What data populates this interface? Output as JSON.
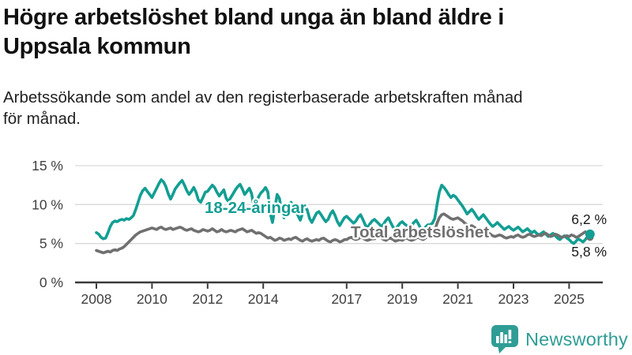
{
  "header": {
    "title_line1": "Högre arbetslöshet bland unga än bland äldre i",
    "title_line2": "Uppsala kommun",
    "subtitle_line1": "Arbetssökande som andel av den registerbaserade arbetskraften månad",
    "subtitle_line2": "för månad."
  },
  "logo": {
    "text": "Newsworthy"
  },
  "colors": {
    "youth": "#139e93",
    "total": "#707070",
    "grid": "#d9d9d9",
    "axis": "#3a3a3a",
    "tick_text": "#404040",
    "annotation_text": "#1a1a1a",
    "logo": "#2f9d95"
  },
  "chart_data": {
    "type": "line",
    "title": "Högre arbetslöshet bland unga än bland äldre i Uppsala kommun",
    "subtitle": "Arbetssökande som andel av den registerbaserade arbetskraften månad för månad.",
    "x_unit": "month",
    "x_start": "2008-01",
    "x_end": "2025-10",
    "xlabel": "",
    "ylabel": "",
    "ylim": [
      0,
      15
    ],
    "grid": true,
    "legend_position": "inline-labels",
    "y_ticks": [
      {
        "value": 0,
        "label": "0 %"
      },
      {
        "value": 5,
        "label": "5 %"
      },
      {
        "value": 10,
        "label": "10 %"
      },
      {
        "value": 15,
        "label": "15 %"
      }
    ],
    "x_ticks": [
      {
        "value": 2008,
        "label": "2008"
      },
      {
        "value": 2010,
        "label": "2010"
      },
      {
        "value": 2012,
        "label": "2012"
      },
      {
        "value": 2014,
        "label": "2014"
      },
      {
        "value": 2017,
        "label": "2017"
      },
      {
        "value": 2019,
        "label": "2019"
      },
      {
        "value": 2021,
        "label": "2021"
      },
      {
        "value": 2023,
        "label": "2023"
      },
      {
        "value": 2025,
        "label": "2025"
      }
    ],
    "series": [
      {
        "name": "18-24-åringar",
        "color": "#139e93",
        "end_value": 6.2,
        "end_label": "6,2 %",
        "values": [
          6.4,
          6.2,
          5.8,
          5.6,
          5.7,
          6.4,
          7.2,
          7.7,
          7.9,
          7.8,
          8.0,
          8.1,
          8.0,
          8.2,
          8.1,
          8.3,
          8.6,
          9.4,
          10.3,
          11.2,
          11.8,
          12.1,
          11.7,
          11.3,
          10.9,
          11.5,
          12.1,
          12.7,
          13.2,
          12.9,
          12.3,
          11.4,
          10.7,
          11.3,
          12.0,
          12.4,
          12.8,
          13.1,
          12.5,
          11.8,
          11.3,
          11.7,
          12.2,
          11.6,
          10.6,
          10.3,
          10.9,
          11.6,
          11.7,
          12.1,
          12.5,
          12.2,
          11.6,
          11.1,
          11.5,
          11.9,
          10.8,
          10.4,
          10.9,
          11.4,
          11.9,
          12.3,
          12.6,
          12.0,
          11.3,
          11.7,
          12.1,
          11.4,
          9.6,
          10.2,
          11.0,
          11.5,
          11.8,
          12.2,
          11.6,
          8.9,
          7.7,
          9.5,
          11.3,
          10.8,
          9.0,
          8.3,
          9.1,
          9.9,
          10.3,
          9.8,
          9.2,
          8.6,
          8.0,
          8.9,
          9.8,
          9.3,
          8.2,
          7.7,
          8.3,
          8.9,
          9.1,
          8.7,
          8.2,
          7.8,
          8.1,
          8.8,
          9.2,
          8.6,
          7.8,
          7.3,
          7.8,
          8.3,
          8.5,
          8.2,
          7.9,
          7.6,
          7.9,
          8.4,
          8.7,
          8.1,
          7.4,
          7.0,
          7.5,
          7.9,
          8.1,
          7.8,
          7.5,
          7.2,
          7.5,
          8.0,
          8.3,
          7.7,
          7.1,
          6.8,
          7.2,
          7.6,
          7.8,
          7.5,
          7.3,
          7.0,
          7.3,
          7.7,
          8.0,
          7.5,
          6.9,
          6.7,
          7.1,
          7.4,
          7.4,
          7.6,
          8.2,
          10.0,
          11.6,
          12.5,
          12.2,
          11.8,
          11.3,
          10.9,
          11.2,
          11.0,
          10.6,
          10.2,
          9.8,
          9.3,
          8.8,
          9.1,
          9.4,
          9.0,
          8.5,
          8.1,
          8.4,
          8.7,
          8.3,
          7.9,
          7.5,
          7.2,
          7.4,
          7.7,
          7.4,
          7.1,
          6.8,
          7.0,
          7.2,
          6.9,
          6.7,
          6.9,
          7.1,
          6.8,
          6.5,
          6.7,
          6.9,
          6.6,
          6.4,
          6.6,
          6.3,
          6.1,
          6.3,
          6.5,
          6.2,
          5.9,
          6.1,
          6.3,
          6.0,
          5.7,
          5.5,
          5.8,
          6.0,
          5.7,
          5.5,
          5.2,
          5.0,
          5.3,
          5.6,
          5.4,
          5.2,
          5.5,
          5.9,
          6.2
        ]
      },
      {
        "name": "Total arbetslöshet",
        "color": "#707070",
        "end_value": 5.8,
        "end_label": "5,8 %",
        "values": [
          4.1,
          4.0,
          3.9,
          3.8,
          3.9,
          4.0,
          3.9,
          4.1,
          4.2,
          4.1,
          4.3,
          4.4,
          4.6,
          4.9,
          5.2,
          5.5,
          5.8,
          6.1,
          6.3,
          6.5,
          6.6,
          6.7,
          6.8,
          6.9,
          7.0,
          6.9,
          6.8,
          7.0,
          7.1,
          6.9,
          6.8,
          6.9,
          7.0,
          6.8,
          6.9,
          7.0,
          7.1,
          7.0,
          6.8,
          6.7,
          6.8,
          6.9,
          6.7,
          6.6,
          6.5,
          6.6,
          6.8,
          6.7,
          6.6,
          6.7,
          6.9,
          6.7,
          6.5,
          6.6,
          6.8,
          6.6,
          6.5,
          6.6,
          6.7,
          6.6,
          6.5,
          6.7,
          6.8,
          6.9,
          6.7,
          6.5,
          6.6,
          6.7,
          6.5,
          6.3,
          6.4,
          6.3,
          6.1,
          5.9,
          5.7,
          5.8,
          5.6,
          5.4,
          5.5,
          5.7,
          5.6,
          5.4,
          5.5,
          5.6,
          5.5,
          5.7,
          5.8,
          5.6,
          5.4,
          5.3,
          5.5,
          5.6,
          5.4,
          5.3,
          5.4,
          5.5,
          5.4,
          5.6,
          5.7,
          5.5,
          5.3,
          5.2,
          5.4,
          5.5,
          5.4,
          5.2,
          5.3,
          5.5,
          5.5,
          5.7,
          5.8,
          5.6,
          5.5,
          5.6,
          5.8,
          5.7,
          5.5,
          5.4,
          5.5,
          5.6,
          5.6,
          5.8,
          5.9,
          5.7,
          5.5,
          5.4,
          5.6,
          5.7,
          5.5,
          5.3,
          5.4,
          5.5,
          5.4,
          5.6,
          5.7,
          5.5,
          5.4,
          5.5,
          5.7,
          5.8,
          5.6,
          5.5,
          5.7,
          5.9,
          6.0,
          6.1,
          6.6,
          7.6,
          8.3,
          8.7,
          8.8,
          8.6,
          8.4,
          8.2,
          8.1,
          8.2,
          8.3,
          8.1,
          7.9,
          7.6,
          7.4,
          7.2,
          7.3,
          7.1,
          6.9,
          6.7,
          6.6,
          6.7,
          6.6,
          6.4,
          6.2,
          6.0,
          5.9,
          6.0,
          6.1,
          6.0,
          5.8,
          5.7,
          5.8,
          5.9,
          5.8,
          6.0,
          6.1,
          5.9,
          5.8,
          5.9,
          6.1,
          6.2,
          6.0,
          5.9,
          6.0,
          6.1,
          6.0,
          6.2,
          6.3,
          6.1,
          5.9,
          6.0,
          6.2,
          6.1,
          5.9,
          5.8,
          5.9,
          6.0,
          5.9,
          6.1,
          6.0,
          5.8,
          5.9,
          6.1,
          6.3,
          6.5,
          6.2,
          5.8
        ]
      }
    ]
  }
}
